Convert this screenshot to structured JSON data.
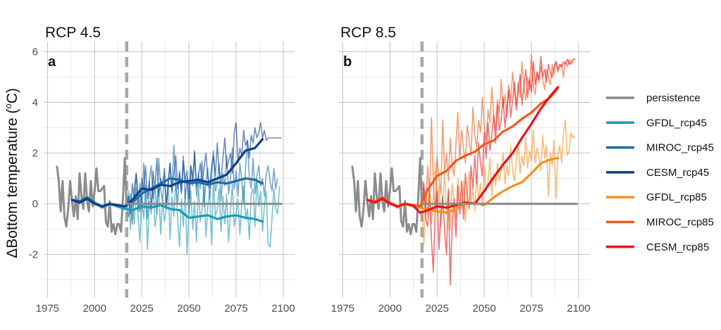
{
  "chart_data": {
    "type": "line",
    "ylabel_prefix": "ΔBottom temperature (",
    "ylabel_sup": "o",
    "ylabel_suffix": "C)",
    "x_ticks": [
      1975,
      2000,
      2025,
      2050,
      2075,
      2100
    ],
    "y_ticks": [
      -2,
      0,
      2,
      4,
      6
    ],
    "xlim": [
      1973,
      2106
    ],
    "ylim": [
      -3.7,
      6.4
    ],
    "grid": true,
    "legend_position": "right",
    "projection_start_marker": 2017,
    "legend": [
      {
        "name": "persistence",
        "color": "#8c8c8c"
      },
      {
        "name": "GFDL_rcp45",
        "color": "#1a9bb5"
      },
      {
        "name": "MIROC_rcp45",
        "color": "#1a6ea8"
      },
      {
        "name": "CESM_rcp45",
        "color": "#0c3f8f"
      },
      {
        "name": "GFDL_rcp85",
        "color": "#f7901e"
      },
      {
        "name": "MIROC_rcp85",
        "color": "#f05a1a"
      },
      {
        "name": "CESM_rcp85",
        "color": "#e8141a"
      }
    ],
    "hindcast": {
      "x": [
        1980,
        1981,
        1982,
        1983,
        1984,
        1985,
        1986,
        1987,
        1988,
        1989,
        1990,
        1991,
        1992,
        1993,
        1994,
        1995,
        1996,
        1997,
        1998,
        1999,
        2000,
        2001,
        2002,
        2003,
        2004,
        2005,
        2006,
        2007,
        2008,
        2009,
        2010,
        2011,
        2012,
        2013,
        2014,
        2015,
        2016,
        2017
      ],
      "y": [
        1.5,
        0.9,
        -0.3,
        0.9,
        -0.5,
        -0.9,
        -0.2,
        0.9,
        0.1,
        -0.5,
        0.3,
        -0.6,
        1.2,
        0.3,
        -0.2,
        1.2,
        0.1,
        -0.3,
        0.9,
        -0.1,
        0.5,
        1.4,
        0.5,
        0.5,
        0.6,
        0.7,
        -0.7,
        -0.9,
        0.1,
        -1.1,
        -0.8,
        -1.2,
        -0.8,
        -0.8,
        -1.1,
        0.2,
        1.8,
        -0.2
      ]
    },
    "panels": [
      {
        "title": "RCP 4.5",
        "tag": "a",
        "annual": [
          {
            "name": "GFDL_rcp45",
            "color": "#1a9bb5",
            "x0": 2017,
            "y": [
              -0.2,
              0.5,
              -1.0,
              0.2,
              -0.8,
              0.6,
              -0.4,
              -1.5,
              0.3,
              -0.6,
              0.7,
              -1.8,
              0.1,
              -0.4,
              0.9,
              -0.9,
              -0.3,
              0.6,
              -1.2,
              0.2,
              -0.7,
              -0.2,
              0.8,
              -1.4,
              0.3,
              -0.5,
              1.0,
              -0.6,
              -1.7,
              0.2,
              -0.9,
              0.6,
              -2.0,
              -0.3,
              0.5,
              -1.0,
              0.1,
              -1.5,
              0.8,
              -0.7,
              -0.2,
              0.7,
              -1.3,
              -0.1,
              0.5,
              -1.6,
              0.9,
              -0.5,
              -0.2,
              0.6,
              -1.1,
              0.3,
              -0.8,
              0.4,
              -1.5,
              -0.3,
              0.8,
              -0.9,
              -0.4,
              0.2,
              -1.2,
              0.1,
              0.7,
              -0.6,
              -0.2,
              -1.4,
              0.4,
              0.6,
              -0.9,
              1.0,
              -0.1,
              0.5,
              -1.1,
              0.0,
              0.5,
              -1.6,
              -1.7,
              -0.6,
              0.6,
              -0.2,
              -0.4,
              0.7
            ]
          },
          {
            "name": "MIROC_rcp45",
            "color": "#1a6ea8",
            "x0": 2017,
            "y": [
              -0.2,
              -0.5,
              0.4,
              -0.8,
              0.6,
              1.2,
              -0.3,
              0.8,
              -0.2,
              1.6,
              0.3,
              -0.6,
              0.9,
              1.5,
              0.2,
              0.7,
              -0.4,
              1.8,
              0.6,
              0.1,
              1.1,
              -0.2,
              0.9,
              1.6,
              0.4,
              2.3,
              0.8,
              0.0,
              1.3,
              0.5,
              1.9,
              0.2,
              1.0,
              -0.4,
              1.5,
              0.7,
              2.0,
              0.3,
              1.2,
              0.6,
              1.7,
              -0.1,
              0.9,
              1.4,
              0.2,
              1.1,
              2.1,
              0.5,
              0.8,
              1.6,
              0.1,
              1.2,
              0.7,
              1.9,
              0.4,
              1.0,
              2.2,
              0.6,
              1.3,
              0.3,
              1.6,
              0.9,
              0.0,
              1.4,
              2.5,
              1.0,
              0.6,
              1.8,
              0.4,
              1.1,
              1.5,
              0.7,
              1.0,
              0.3,
              1.2,
              1.5,
              0.9,
              0.5,
              1.4,
              0.6,
              1.0
            ]
          },
          {
            "name": "CESM_rcp45",
            "color": "#0c3f8f",
            "x0": 2017,
            "y": [
              -0.2,
              0.3,
              -0.4,
              0.8,
              0.1,
              1.2,
              0.4,
              -0.3,
              1.0,
              0.5,
              1.5,
              0.2,
              0.9,
              -0.2,
              1.3,
              0.6,
              1.8,
              0.3,
              1.0,
              0.7,
              1.4,
              -0.1,
              0.8,
              1.6,
              0.5,
              1.1,
              1.9,
              0.6,
              1.2,
              0.4,
              1.7,
              0.9,
              1.3,
              0.2,
              1.5,
              1.0,
              2.1,
              0.7,
              1.1,
              1.6,
              0.8,
              1.4,
              2.0,
              1.0,
              0.6,
              1.5,
              1.9,
              1.1,
              2.4,
              1.3,
              0.9,
              1.8,
              2.6,
              1.4,
              1.7,
              2.0,
              1.2,
              2.8,
              3.2,
              1.6,
              2.2,
              1.9,
              2.9,
              2.3,
              2.5,
              1.8,
              2.7,
              2.4,
              3.0,
              2.6,
              2.8,
              3.2,
              2.6,
              2.9,
              2.5,
              2.6,
              2.6,
              2.6,
              2.6,
              2.6,
              2.6,
              2.6,
              2.6
            ]
          },
          {
            "name": "persistence",
            "color": "#8c8c8c",
            "x0": 2017,
            "y": [
              0,
              0
            ]
          }
        ],
        "smooth": [
          {
            "name": "GFDL_rcp45",
            "color": "#1a9bb5",
            "x": [
              1988,
              1992,
              1996,
              2000,
              2004,
              2008,
              2012,
              2016,
              2020,
              2025,
              2030,
              2035,
              2040,
              2045,
              2050,
              2055,
              2060,
              2065,
              2070,
              2075,
              2080,
              2085,
              2089
            ],
            "y": [
              0.15,
              0.05,
              0.2,
              0.05,
              -0.15,
              0.0,
              -0.1,
              -0.2,
              -0.25,
              -0.1,
              -0.15,
              -0.05,
              -0.2,
              -0.25,
              -0.55,
              -0.5,
              -0.45,
              -0.6,
              -0.5,
              -0.45,
              -0.55,
              -0.6,
              -0.7
            ]
          },
          {
            "name": "MIROC_rcp45",
            "color": "#1a6ea8",
            "x": [
              1988,
              1992,
              1996,
              2000,
              2004,
              2008,
              2012,
              2016,
              2020,
              2025,
              2030,
              2035,
              2040,
              2045,
              2050,
              2055,
              2060,
              2065,
              2070,
              2075,
              2080,
              2085,
              2089
            ],
            "y": [
              0.15,
              0.1,
              0.25,
              0.05,
              -0.1,
              0.0,
              -0.05,
              -0.1,
              0.05,
              0.4,
              0.6,
              0.8,
              1.0,
              0.95,
              0.8,
              0.85,
              0.75,
              0.85,
              0.8,
              0.9,
              1.0,
              0.95,
              0.8
            ]
          },
          {
            "name": "CESM_rcp45",
            "color": "#0c3f8f",
            "x": [
              1988,
              1992,
              1996,
              2000,
              2004,
              2008,
              2012,
              2016,
              2020,
              2025,
              2030,
              2035,
              2040,
              2045,
              2050,
              2055,
              2060,
              2065,
              2070,
              2075,
              2080,
              2085,
              2089
            ],
            "y": [
              0.15,
              0.05,
              0.2,
              0.0,
              -0.1,
              0.0,
              -0.05,
              -0.1,
              0.15,
              0.6,
              0.55,
              0.75,
              0.7,
              0.85,
              0.9,
              0.95,
              0.85,
              1.0,
              1.15,
              1.6,
              2.1,
              2.2,
              2.55
            ]
          },
          {
            "name": "persistence",
            "color": "#8c8c8c",
            "x": [
              2017,
              2099
            ],
            "y": [
              0,
              0
            ]
          }
        ]
      },
      {
        "title": "RCP 8.5",
        "tag": "b",
        "annual": [
          {
            "name": "GFDL_rcp85",
            "color": "#f7901e",
            "x0": 2017,
            "y": [
              -0.2,
              -1.6,
              0.6,
              -0.5,
              0.9,
              -0.8,
              0.3,
              1.6,
              -0.3,
              0.7,
              -0.9,
              0.2,
              1.2,
              -0.4,
              0.5,
              -1.0,
              0.8,
              0.1,
              -0.6,
              1.0,
              0.3,
              -0.2,
              0.9,
              -0.7,
              0.4,
              1.3,
              0.0,
              0.6,
              -0.3,
              1.1,
              0.2,
              0.8,
              -0.1,
              1.5,
              0.5,
              0.9,
              1.8,
              0.3,
              1.2,
              0.7,
              1.6,
              0.9,
              1.4,
              2.0,
              0.8,
              1.5,
              1.1,
              2.3,
              1.3,
              0.9,
              1.7,
              2.4,
              1.2,
              1.9,
              1.5,
              2.6,
              1.4,
              2.1,
              1.7,
              2.9,
              1.6,
              2.2,
              1.9,
              1.3,
              2.7,
              1.8,
              2.3,
              0.3,
              2.0,
              1.5,
              2.5,
              0.2,
              1.9,
              2.3,
              1.6,
              2.8,
              3.3,
              1.9,
              2.1,
              2.8,
              2.6,
              2.7
            ]
          },
          {
            "name": "MIROC_rcp85",
            "color": "#f05a1a",
            "x0": 2017,
            "y": [
              -0.2,
              0.6,
              -0.4,
              1.5,
              0.3,
              3.4,
              0.8,
              -0.3,
              1.9,
              1.0,
              0.4,
              3.3,
              1.2,
              2.0,
              0.9,
              2.6,
              1.5,
              1.1,
              2.4,
              3.6,
              1.8,
              2.9,
              2.2,
              1.6,
              3.1,
              2.5,
              1.9,
              3.8,
              2.7,
              2.2,
              3.3,
              2.8,
              4.2,
              3.1,
              2.5,
              3.7,
              3.2,
              4.6,
              3.5,
              2.9,
              4.1,
              3.6,
              4.9,
              3.8,
              4.3,
              3.4,
              4.7,
              4.0,
              5.2,
              4.4,
              3.9,
              4.8,
              4.2,
              5.6,
              4.6,
              4.1,
              5.0,
              4.5,
              5.9,
              4.7,
              4.3,
              5.2,
              4.8,
              5.4,
              4.9,
              4.5,
              5.3,
              5.0,
              4.7,
              5.5,
              5.1,
              5.6,
              5.2,
              5.4,
              5.5,
              5.0,
              5.6,
              5.4,
              5.7,
              5.5,
              5.6,
              5.7
            ]
          },
          {
            "name": "CESM_rcp85",
            "color": "#e8141a",
            "x0": 2017,
            "y": [
              -0.2,
              0.8,
              -0.6,
              -0.9,
              0.4,
              -1.4,
              -2.7,
              -0.3,
              0.5,
              -1.8,
              -0.5,
              0.3,
              -1.1,
              -2.0,
              0.6,
              -3.2,
              -0.8,
              0.2,
              -1.3,
              0.7,
              -0.4,
              0.9,
              -0.6,
              1.2,
              0.3,
              -0.2,
              1.5,
              0.6,
              1.9,
              0.8,
              2.4,
              1.6,
              1.1,
              2.8,
              1.8,
              3.2,
              2.1,
              2.7,
              3.5,
              2.4,
              3.9,
              2.9,
              3.3,
              4.2,
              3.0,
              3.8,
              4.5,
              3.4,
              4.1,
              4.8,
              3.7,
              4.4,
              5.1,
              3.9,
              4.6,
              5.3,
              4.2,
              4.9,
              4.4,
              5.6,
              4.7,
              5.2,
              4.9,
              5.8,
              5.0,
              5.3,
              4.8,
              5.5,
              5.2,
              5.0,
              5.4,
              5.6,
              5.3,
              5.5,
              5.4,
              5.6,
              5.5,
              5.7,
              5.5,
              5.6,
              5.7,
              5.7
            ]
          },
          {
            "name": "persistence",
            "color": "#8c8c8c",
            "x0": 2017,
            "y": [
              0,
              0
            ]
          }
        ],
        "smooth": [
          {
            "name": "GFDL_rcp85",
            "color": "#f7901e",
            "x": [
              1988,
              1992,
              1996,
              2000,
              2004,
              2008,
              2012,
              2016,
              2020,
              2025,
              2030,
              2035,
              2040,
              2045,
              2050,
              2055,
              2060,
              2065,
              2070,
              2075,
              2080,
              2085,
              2089
            ],
            "y": [
              0.15,
              0.05,
              0.2,
              0.05,
              -0.15,
              0.0,
              -0.1,
              -0.15,
              -0.2,
              -0.3,
              -0.35,
              -0.2,
              0.0,
              0.05,
              -0.05,
              0.25,
              0.5,
              0.7,
              0.85,
              1.2,
              1.6,
              1.75,
              1.8
            ]
          },
          {
            "name": "MIROC_rcp85",
            "color": "#f05a1a",
            "x": [
              1988,
              1992,
              1996,
              2000,
              2004,
              2008,
              2012,
              2016,
              2020,
              2025,
              2030,
              2035,
              2040,
              2045,
              2050,
              2055,
              2060,
              2065,
              2070,
              2075,
              2080,
              2085,
              2089
            ],
            "y": [
              0.15,
              0.1,
              0.25,
              0.05,
              -0.1,
              0.0,
              -0.05,
              -0.1,
              0.55,
              1.1,
              1.3,
              1.7,
              1.9,
              2.05,
              2.35,
              2.5,
              2.85,
              3.05,
              3.35,
              3.6,
              3.95,
              4.2,
              4.55
            ]
          },
          {
            "name": "CESM_rcp85",
            "color": "#e8141a",
            "x": [
              1988,
              1992,
              1996,
              2000,
              2004,
              2008,
              2012,
              2016,
              2020,
              2025,
              2030,
              2035,
              2040,
              2045,
              2050,
              2055,
              2060,
              2065,
              2070,
              2075,
              2080,
              2085,
              2089
            ],
            "y": [
              0.15,
              0.05,
              0.2,
              0.0,
              -0.1,
              0.0,
              -0.05,
              -0.35,
              -0.25,
              -0.1,
              -0.15,
              -0.05,
              0.05,
              0.0,
              0.5,
              1.05,
              1.55,
              2.0,
              2.6,
              3.15,
              3.75,
              4.25,
              4.6
            ]
          },
          {
            "name": "persistence",
            "color": "#8c8c8c",
            "x": [
              2017,
              2099
            ],
            "y": [
              0,
              0
            ]
          }
        ]
      }
    ]
  }
}
